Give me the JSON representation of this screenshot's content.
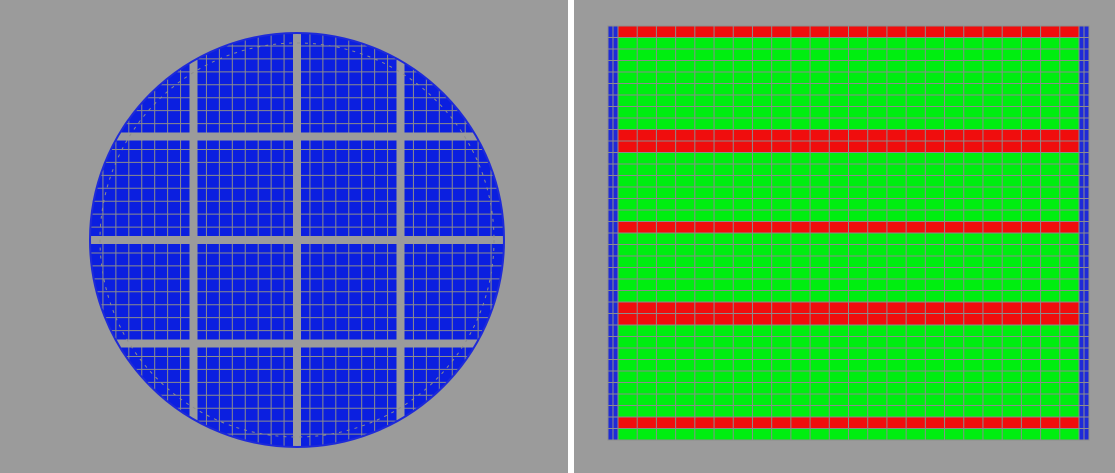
{
  "colors": {
    "background": "#9b9b9b",
    "grid_line": "#8c8c8c",
    "cell_blue": "#0b1fe0",
    "cell_green": "#00ee10",
    "band_red": "#f00d0d",
    "edge_blue": "#1e2ad8",
    "separator": "#ffffff"
  },
  "left_view": {
    "shape": "circular wafer mesh",
    "blocks_per_side": 4,
    "fine_divisions_per_block": 8
  },
  "right_view": {
    "shape": "rectangular section mesh",
    "vertical_columns": 24,
    "band_rows": [
      {
        "color": "red",
        "rows": 1
      },
      {
        "color": "green",
        "rows": 8
      },
      {
        "color": "red",
        "rows": 2
      },
      {
        "color": "green",
        "rows": 6
      },
      {
        "color": "red",
        "rows": 1
      },
      {
        "color": "green",
        "rows": 6
      },
      {
        "color": "red",
        "rows": 2
      },
      {
        "color": "green",
        "rows": 8
      },
      {
        "color": "red",
        "rows": 1
      },
      {
        "color": "green",
        "rows": 1
      }
    ]
  }
}
